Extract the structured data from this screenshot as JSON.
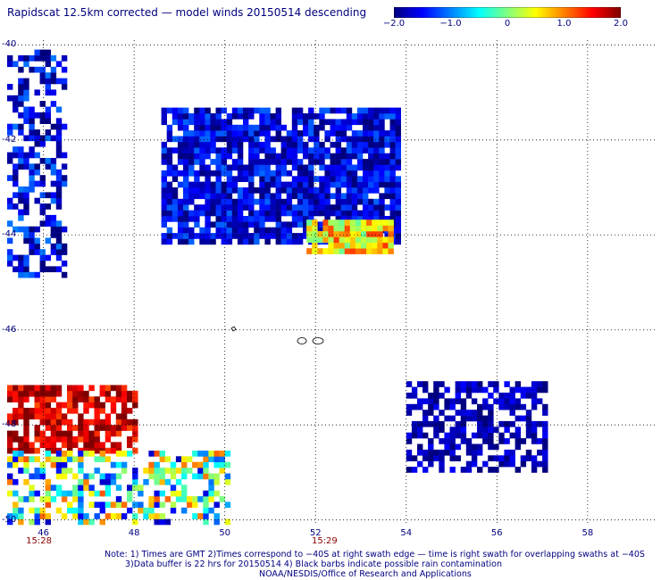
{
  "title": "Rapidscat 12.5km corrected — model winds 20150514 descending",
  "colorbar": {
    "ticks": [
      "−2.0",
      "−1.0",
      "0",
      "1.0",
      "2.0"
    ],
    "tick_values": [
      -2,
      -1,
      0,
      1,
      2
    ],
    "range": [
      -2,
      2
    ],
    "colors": [
      "#00007f",
      "#0000ff",
      "#0080ff",
      "#00ffff",
      "#80ff80",
      "#ffff00",
      "#ff8000",
      "#ff0000",
      "#7f0000"
    ]
  },
  "axes": {
    "lat_labels": [
      "-40",
      "-42",
      "-44",
      "-46",
      "-48",
      "-50"
    ],
    "lat_values": [
      -40,
      -42,
      -44,
      -46,
      -48,
      -50
    ],
    "lon_labels": [
      "46",
      "48",
      "50",
      "52",
      "54",
      "56",
      "58"
    ],
    "lon_values": [
      46,
      48,
      50,
      52,
      54,
      56,
      58
    ],
    "lon_range": [
      45.2,
      59.5
    ],
    "lat_range": [
      -50.1,
      -39.9
    ],
    "grid": "dotted"
  },
  "time_labels": [
    {
      "text": "15:28",
      "lon": 45.9
    },
    {
      "text": "15:29",
      "lon": 52.2
    }
  ],
  "notes": [
    "Note: 1) Times are GMT 2)Times correspond to −40S at right swath edge — time is right swath for overlapping swaths at −40S",
    "3)Data buffer is 22 hrs for 20150514 4) Black barbs indicate possible rain contamination",
    "NOAA/NESDIS/Office of Research and Applications"
  ],
  "regions": [
    {
      "name": "left-edge-band",
      "lon": [
        45.2,
        46.4
      ],
      "lat": [
        -44.9,
        -40.2
      ],
      "mean": -1.6,
      "spread": 0.6,
      "density": 0.55
    },
    {
      "name": "upper-diagonal-band",
      "lon": [
        48.6,
        53.8
      ],
      "lat": [
        -44.2,
        -41.4
      ],
      "mean": -1.6,
      "spread": 0.5,
      "density": 0.85
    },
    {
      "name": "positive-core",
      "lon": [
        51.8,
        53.6
      ],
      "lat": [
        -44.4,
        -43.8
      ],
      "mean": 0.6,
      "spread": 0.7,
      "density": 0.95
    },
    {
      "name": "lower-left-positive",
      "lon": [
        45.2,
        48.0
      ],
      "lat": [
        -48.6,
        -47.2
      ],
      "mean": 1.7,
      "spread": 0.5,
      "density": 0.75
    },
    {
      "name": "lower-left-mixed",
      "lon": [
        45.2,
        50.0
      ],
      "lat": [
        -50.1,
        -48.6
      ],
      "mean": -0.3,
      "spread": 1.5,
      "density": 0.5
    },
    {
      "name": "lower-right-cluster",
      "lon": [
        54.0,
        57.0
      ],
      "lat": [
        -49.0,
        -47.2
      ],
      "mean": -1.8,
      "spread": 0.3,
      "density": 0.6
    }
  ]
}
